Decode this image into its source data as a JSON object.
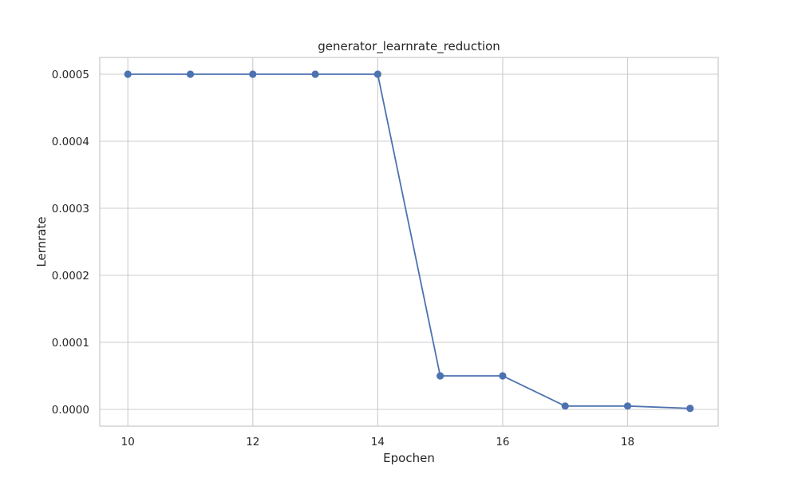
{
  "chart_data": {
    "type": "line",
    "title": "generator_learnrate_reduction",
    "xlabel": "Epochen",
    "ylabel": "Lernrate",
    "xlim": [
      9.55,
      19.45
    ],
    "ylim": [
      -2.5e-05,
      0.000525
    ],
    "xticks": [
      10,
      12,
      14,
      16,
      18
    ],
    "xtick_labels": [
      "10",
      "12",
      "14",
      "16",
      "18"
    ],
    "yticks": [
      0.0,
      0.0001,
      0.0002,
      0.0003,
      0.0004,
      0.0005
    ],
    "ytick_labels": [
      "0.0000",
      "0.0001",
      "0.0002",
      "0.0003",
      "0.0004",
      "0.0005"
    ],
    "grid": true,
    "series": [
      {
        "name": "generator_learnrate",
        "color": "#4c72b0",
        "marker": "circle",
        "x": [
          10,
          11,
          12,
          13,
          14,
          15,
          16,
          17,
          18,
          19
        ],
        "values": [
          0.0005,
          0.0005,
          0.0005,
          0.0005,
          0.0005,
          5e-05,
          5e-05,
          5e-06,
          5e-06,
          1.5e-06
        ]
      }
    ]
  }
}
